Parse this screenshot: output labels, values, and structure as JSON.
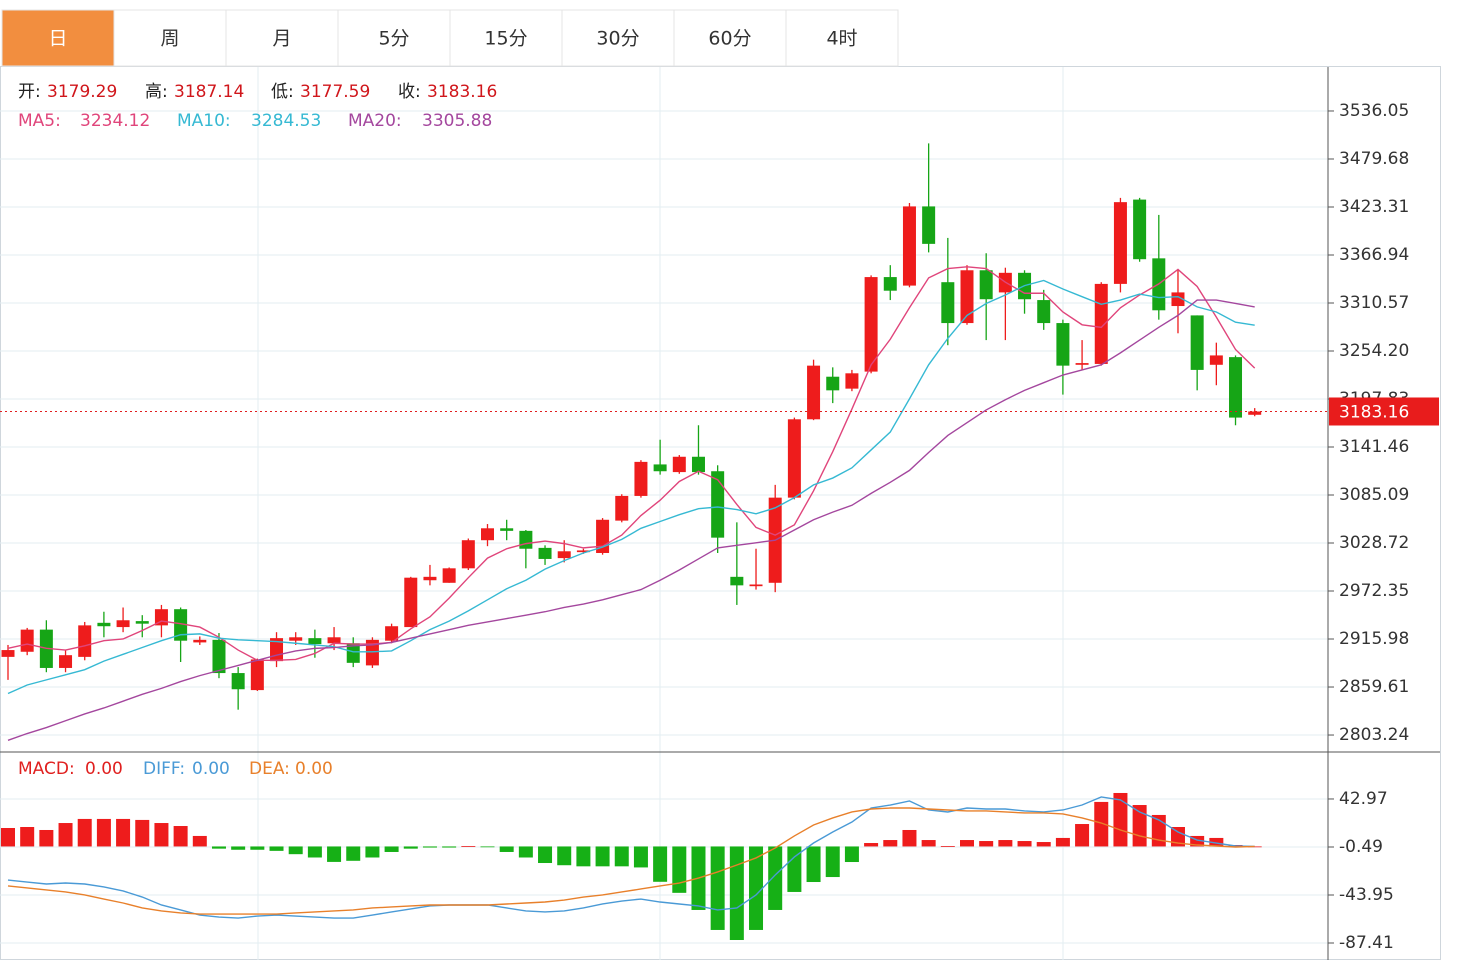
{
  "tabs": [
    "日",
    "周",
    "月",
    "5分",
    "15分",
    "30分",
    "60分",
    "4时"
  ],
  "active_tab": 0,
  "chart_data": [
    {
      "type": "candlestick",
      "readout_labels": [
        "开:",
        "高:",
        "低:",
        "收:"
      ],
      "up_color": "#ee1c1c",
      "down_color": "#16a516",
      "readout_value_color": "#d0161b",
      "open": [
        2895,
        2901,
        2927,
        2882,
        2895,
        2935,
        2930,
        2937,
        2932,
        2951,
        2912,
        2915,
        2876,
        2856,
        2890,
        2914,
        2917,
        2911,
        2911,
        2885,
        2914,
        2930,
        2985,
        2982,
        2999,
        3032,
        3046,
        3043,
        3023,
        3011,
        3018,
        3017,
        3055,
        3084,
        3121,
        3112,
        3130,
        3113,
        2989,
        2978,
        2982,
        3082,
        3174,
        3224,
        3210,
        3230,
        3341,
        3331,
        3424,
        3335,
        3287,
        3349,
        3323,
        3346,
        3314,
        3287,
        3238,
        3239,
        3333,
        3432,
        3363,
        3307,
        3296,
        3238,
        3247,
        3179.29
      ],
      "high": [
        2909,
        2929,
        2938,
        2903,
        2936,
        2948,
        2953,
        2944,
        2956,
        2953,
        2919,
        2923,
        2883,
        2893,
        2924,
        2924,
        2927,
        2930,
        2918,
        2918,
        2934,
        2989,
        3003,
        3000,
        3034,
        3051,
        3056,
        3044,
        3026,
        3032,
        3022,
        3058,
        3086,
        3126,
        3150,
        3132,
        3167,
        3120,
        3053,
        3022,
        3097,
        3176,
        3244,
        3235,
        3232,
        3343,
        3355,
        3428,
        3498,
        3387,
        3355,
        3369,
        3352,
        3349,
        3326,
        3291,
        3267,
        3335,
        3434,
        3434,
        3414,
        3349,
        3296,
        3264,
        3249,
        3187.14
      ],
      "low": [
        2868,
        2897,
        2877,
        2877,
        2891,
        2918,
        2924,
        2918,
        2918,
        2889,
        2909,
        2870,
        2833,
        2855,
        2883,
        2909,
        2894,
        2903,
        2883,
        2882,
        2911,
        2930,
        2979,
        2982,
        2997,
        3025,
        3032,
        2999,
        3003,
        3006,
        3016,
        3015,
        3053,
        3082,
        3109,
        3110,
        3109,
        3017,
        2956,
        2974,
        2971,
        3080,
        3173,
        3193,
        3207,
        3228,
        3314,
        3329,
        3370,
        3261,
        3285,
        3267,
        3267,
        3298,
        3279,
        3203,
        3232,
        3237,
        3323,
        3359,
        3291,
        3275,
        3208,
        3214,
        3167,
        3177.59
      ],
      "close": [
        2903,
        2927,
        2882,
        2897,
        2932,
        2931,
        2938,
        2934,
        2951,
        2914,
        2915,
        2876,
        2857,
        2892,
        2917,
        2918,
        2910,
        2918,
        2888,
        2915,
        2931,
        2988,
        2989,
        2999,
        3032,
        3046,
        3043,
        3022,
        3010,
        3019,
        3020,
        3056,
        3084,
        3124,
        3113,
        3130,
        3112,
        3035,
        2979,
        2980,
        3082,
        3174,
        3237,
        3208,
        3228,
        3341,
        3325,
        3424,
        3380,
        3287,
        3349,
        3315,
        3346,
        3315,
        3287,
        3237,
        3240,
        3333,
        3429,
        3362,
        3302,
        3323,
        3232,
        3249,
        3176,
        3183.16
      ],
      "series": [
        {
          "name": "MA5:",
          "color": "#e0457b",
          "values": [
            2905,
            2910,
            2905,
            2903,
            2908,
            2914,
            2916,
            2926,
            2937,
            2934,
            2930,
            2918,
            2903,
            2891,
            2891,
            2892,
            2899,
            2911,
            2910,
            2910,
            2912,
            2928,
            2942,
            2964,
            2988,
            3011,
            3022,
            3028,
            3031,
            3028,
            3023,
            3025,
            3038,
            3061,
            3079,
            3101,
            3113,
            3103,
            3074,
            3047,
            3038,
            3050,
            3090,
            3136,
            3186,
            3238,
            3268,
            3305,
            3340,
            3351,
            3353,
            3351,
            3335,
            3322,
            3322,
            3300,
            3285,
            3282,
            3305,
            3320,
            3333,
            3350,
            3330,
            3294,
            3256,
            3234.12
          ]
        },
        {
          "name": "MA10:",
          "color": "#36b9d3",
          "values": [
            2852,
            2862,
            2868,
            2874,
            2880,
            2890,
            2898,
            2906,
            2914,
            2921,
            2922,
            2917,
            2915,
            2914,
            2913,
            2911,
            2909,
            2907,
            2901,
            2901,
            2902,
            2914,
            2927,
            2937,
            2949,
            2962,
            2975,
            2985,
            2998,
            3008,
            3017,
            3024,
            3033,
            3046,
            3054,
            3062,
            3069,
            3071,
            3068,
            3063,
            3070,
            3082,
            3097,
            3105,
            3117,
            3138,
            3159,
            3198,
            3238,
            3269,
            3296,
            3310,
            3320,
            3331,
            3337,
            3327,
            3318,
            3309,
            3314,
            3321,
            3317,
            3318,
            3306,
            3300,
            3288,
            3284.53
          ]
        },
        {
          "name": "MA20:",
          "color": "#a4479e",
          "values": [
            2797,
            2805,
            2812,
            2820,
            2828,
            2835,
            2843,
            2851,
            2858,
            2866,
            2873,
            2879,
            2885,
            2891,
            2897,
            2902,
            2905,
            2906,
            2908,
            2909,
            2912,
            2917,
            2922,
            2927,
            2932,
            2936,
            2940,
            2944,
            2948,
            2953,
            2957,
            2962,
            2968,
            2974,
            2985,
            2997,
            3010,
            3023,
            3026,
            3029,
            3032,
            3044,
            3056,
            3065,
            3073,
            3087,
            3100,
            3114,
            3135,
            3155,
            3170,
            3185,
            3197,
            3208,
            3217,
            3226,
            3232,
            3238,
            3252,
            3267,
            3282,
            3296,
            3314,
            3314,
            3310,
            3305.88
          ]
        }
      ],
      "ylim": [
        2783.3,
        3587.7
      ],
      "yticks": [
        3536.05,
        3479.68,
        3423.31,
        3366.94,
        3310.57,
        {
          "value": 3254.2,
          "label": "3254.20"
        },
        3197.83,
        3141.46,
        3085.09,
        3028.72,
        2972.35,
        2915.98,
        2859.61,
        2803.24
      ],
      "grid": true
    },
    {
      "type": "macd",
      "histogram": {
        "name": "MACD:",
        "readout_label": "0.00",
        "color": "#e0201f",
        "up_color": "#ee1c1c",
        "down_color": "#16b016",
        "values": [
          16.7,
          17.6,
          14.9,
          21.2,
          24.9,
          24.9,
          24.9,
          24,
          21.2,
          18.5,
          9.5,
          -2,
          -3,
          -3,
          -4,
          -7,
          -10,
          -14,
          -13,
          -10,
          -5,
          -2,
          -1,
          -1,
          0.4,
          -0.5,
          -5,
          -10,
          -15,
          -17,
          -18,
          -18,
          -18,
          -19,
          -32,
          -42,
          -57.5,
          -75.6,
          -84.7,
          -75.6,
          -57.5,
          -41.2,
          -32.2,
          -27.7,
          -14.1,
          3.1,
          5.8,
          14.9,
          5.8,
          0.4,
          5.8,
          4.9,
          5.8,
          4.9,
          4,
          7.7,
          20.3,
          40.3,
          48.4,
          37.5,
          28.5,
          17.6,
          9.5,
          7.7,
          1.3,
          0
        ]
      },
      "series": [
        {
          "name": "DIFF:",
          "readout_label": "0.00",
          "color": "#4a9ad6",
          "values": [
            -30.4,
            -32.2,
            -34,
            -33.1,
            -34,
            -36.7,
            -40.3,
            -45.8,
            -53,
            -57.5,
            -62.1,
            -63.9,
            -64.8,
            -63,
            -62.1,
            -63,
            -63.9,
            -64.8,
            -64.8,
            -62.1,
            -59.3,
            -56.6,
            -53.9,
            -53,
            -53,
            -53,
            -55.7,
            -58.4,
            -59.3,
            -58.4,
            -55.7,
            -52.1,
            -49.4,
            -47.6,
            -50.3,
            -52.1,
            -53.9,
            -57.5,
            -55.7,
            -43.9,
            -25.8,
            -9.5,
            3.1,
            13.1,
            22.1,
            34.8,
            37.5,
            41.2,
            33,
            31.2,
            34.8,
            33.9,
            33.9,
            32.1,
            31.2,
            33,
            37.5,
            44.8,
            42.1,
            31.2,
            24,
            13.1,
            5.8,
            3.1,
            0.4,
            0
          ]
        },
        {
          "name": "DEA:",
          "readout_label": "0.00",
          "color": "#e8802b",
          "values": [
            -35.8,
            -37.6,
            -39.4,
            -41.2,
            -43.9,
            -47.6,
            -51.2,
            -55.7,
            -58.4,
            -60.2,
            -61.2,
            -61.2,
            -61.2,
            -61.2,
            -61.2,
            -60.2,
            -59.3,
            -58.4,
            -57.5,
            -55.7,
            -54.8,
            -53.9,
            -53,
            -53,
            -53,
            -53,
            -52.1,
            -51.2,
            -50.3,
            -48.5,
            -45.8,
            -43.9,
            -41.2,
            -38.5,
            -35.8,
            -33.1,
            -28.6,
            -23.1,
            -16.8,
            -10.4,
            -1.4,
            9.5,
            19.4,
            25.8,
            31.2,
            33.9,
            34.8,
            34.8,
            33.9,
            33,
            32.1,
            32.1,
            31.2,
            30.3,
            30.3,
            29.4,
            25.8,
            21.2,
            14.9,
            9.5,
            5.8,
            3.1,
            1.3,
            0.4,
            -0.5,
            0
          ]
        }
      ],
      "ylim": [
        -102.8,
        85.5
      ],
      "yticks": [
        42.97,
        -0.49,
        -43.95,
        -87.41
      ],
      "grid": true
    }
  ]
}
